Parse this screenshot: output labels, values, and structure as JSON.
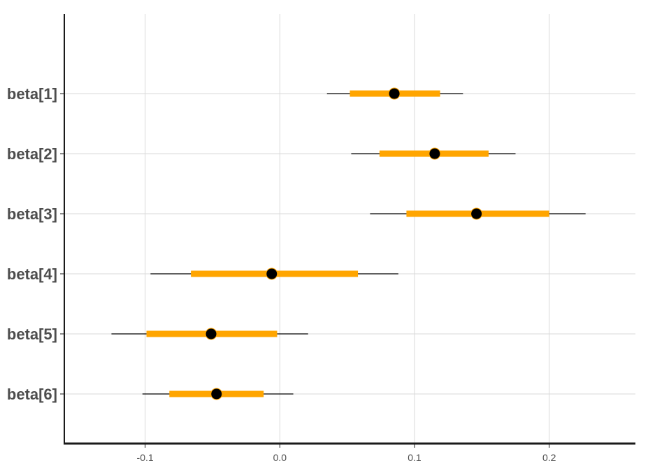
{
  "chart_data": {
    "type": "interval",
    "title": "",
    "xlabel": "",
    "ylabel": "",
    "xlim": [
      -0.16,
      0.264
    ],
    "x_ticks": [
      -0.1,
      0.0,
      0.1,
      0.2
    ],
    "x_tick_labels": [
      "-0.1",
      "0.0",
      "0.1",
      "0.2"
    ],
    "grid": true,
    "legend": "none",
    "colors": {
      "inner_interval": "#ffa500",
      "outer_interval": "#000000",
      "point": "#000000",
      "grid": "#d9d9d9",
      "axis": "#1a1a1a"
    },
    "parameters": [
      {
        "name": "beta[1]",
        "point": 0.085,
        "inner": [
          0.052,
          0.119
        ],
        "outer": [
          0.035,
          0.136
        ]
      },
      {
        "name": "beta[2]",
        "point": 0.115,
        "inner": [
          0.074,
          0.155
        ],
        "outer": [
          0.053,
          0.175
        ]
      },
      {
        "name": "beta[3]",
        "point": 0.146,
        "inner": [
          0.094,
          0.2
        ],
        "outer": [
          0.067,
          0.227
        ]
      },
      {
        "name": "beta[4]",
        "point": -0.006,
        "inner": [
          -0.066,
          0.058
        ],
        "outer": [
          -0.096,
          0.088
        ]
      },
      {
        "name": "beta[5]",
        "point": -0.051,
        "inner": [
          -0.099,
          -0.002
        ],
        "outer": [
          -0.125,
          0.021
        ]
      },
      {
        "name": "beta[6]",
        "point": -0.047,
        "inner": [
          -0.082,
          -0.012
        ],
        "outer": [
          -0.102,
          0.01
        ]
      }
    ]
  }
}
